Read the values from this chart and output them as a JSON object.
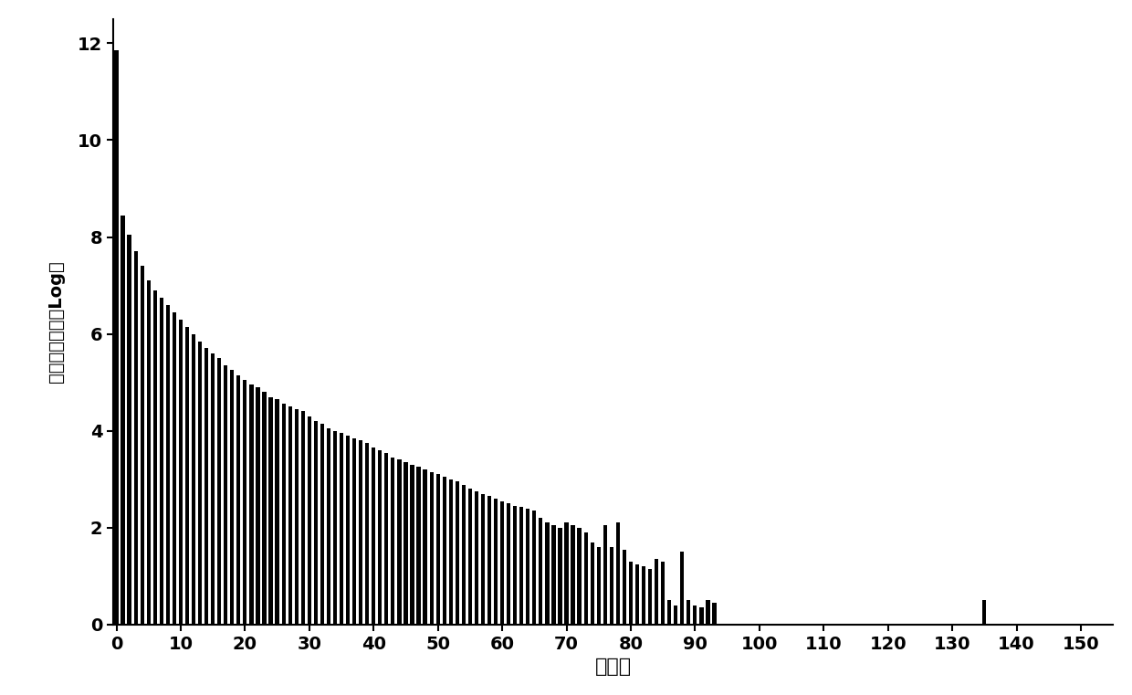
{
  "xlabel": "降水值",
  "ylabel": "降水值样本个数Log值",
  "xlim": [
    -0.5,
    155
  ],
  "ylim": [
    0,
    12.5
  ],
  "xticks": [
    0,
    10,
    20,
    30,
    40,
    50,
    60,
    70,
    80,
    90,
    100,
    110,
    120,
    130,
    140,
    150
  ],
  "yticks": [
    0,
    2,
    4,
    6,
    8,
    10,
    12
  ],
  "bar_color": "#000000",
  "background_color": "#ffffff",
  "bar_data": [
    [
      0,
      11.85
    ],
    [
      1,
      8.45
    ],
    [
      2,
      8.05
    ],
    [
      3,
      7.7
    ],
    [
      4,
      7.4
    ],
    [
      5,
      7.1
    ],
    [
      6,
      6.9
    ],
    [
      7,
      6.75
    ],
    [
      8,
      6.6
    ],
    [
      9,
      6.45
    ],
    [
      10,
      6.3
    ],
    [
      11,
      6.15
    ],
    [
      12,
      6.0
    ],
    [
      13,
      5.85
    ],
    [
      14,
      5.7
    ],
    [
      15,
      5.6
    ],
    [
      16,
      5.5
    ],
    [
      17,
      5.35
    ],
    [
      18,
      5.25
    ],
    [
      19,
      5.15
    ],
    [
      20,
      5.05
    ],
    [
      21,
      4.95
    ],
    [
      22,
      4.9
    ],
    [
      23,
      4.8
    ],
    [
      24,
      4.7
    ],
    [
      25,
      4.65
    ],
    [
      26,
      4.55
    ],
    [
      27,
      4.5
    ],
    [
      28,
      4.45
    ],
    [
      29,
      4.4
    ],
    [
      30,
      4.3
    ],
    [
      31,
      4.2
    ],
    [
      32,
      4.15
    ],
    [
      33,
      4.05
    ],
    [
      34,
      4.0
    ],
    [
      35,
      3.95
    ],
    [
      36,
      3.9
    ],
    [
      37,
      3.85
    ],
    [
      38,
      3.8
    ],
    [
      39,
      3.75
    ],
    [
      40,
      3.65
    ],
    [
      41,
      3.6
    ],
    [
      42,
      3.55
    ],
    [
      43,
      3.45
    ],
    [
      44,
      3.4
    ],
    [
      45,
      3.35
    ],
    [
      46,
      3.3
    ],
    [
      47,
      3.25
    ],
    [
      48,
      3.2
    ],
    [
      49,
      3.15
    ],
    [
      50,
      3.1
    ],
    [
      51,
      3.05
    ],
    [
      52,
      3.0
    ],
    [
      53,
      2.95
    ],
    [
      54,
      2.88
    ],
    [
      55,
      2.8
    ],
    [
      56,
      2.75
    ],
    [
      57,
      2.7
    ],
    [
      58,
      2.65
    ],
    [
      59,
      2.6
    ],
    [
      60,
      2.55
    ],
    [
      61,
      2.5
    ],
    [
      62,
      2.45
    ],
    [
      63,
      2.42
    ],
    [
      64,
      2.4
    ],
    [
      65,
      2.35
    ],
    [
      66,
      2.2
    ],
    [
      67,
      2.1
    ],
    [
      68,
      2.05
    ],
    [
      69,
      2.0
    ],
    [
      70,
      2.1
    ],
    [
      71,
      2.05
    ],
    [
      72,
      2.0
    ],
    [
      73,
      1.9
    ],
    [
      74,
      1.7
    ],
    [
      75,
      1.6
    ],
    [
      76,
      2.05
    ],
    [
      77,
      1.6
    ],
    [
      78,
      2.1
    ],
    [
      79,
      1.55
    ],
    [
      80,
      1.3
    ],
    [
      81,
      1.25
    ],
    [
      82,
      1.2
    ],
    [
      83,
      1.15
    ],
    [
      84,
      1.35
    ],
    [
      85,
      1.3
    ],
    [
      86,
      0.5
    ],
    [
      87,
      0.4
    ],
    [
      88,
      1.5
    ],
    [
      89,
      0.5
    ],
    [
      90,
      0.4
    ],
    [
      91,
      0.35
    ],
    [
      92,
      0.5
    ],
    [
      93,
      0.45
    ],
    [
      135,
      0.5
    ]
  ],
  "ylabel_fontsize": 14,
  "xlabel_fontsize": 16,
  "tick_fontsize": 14,
  "bar_width": 0.6
}
